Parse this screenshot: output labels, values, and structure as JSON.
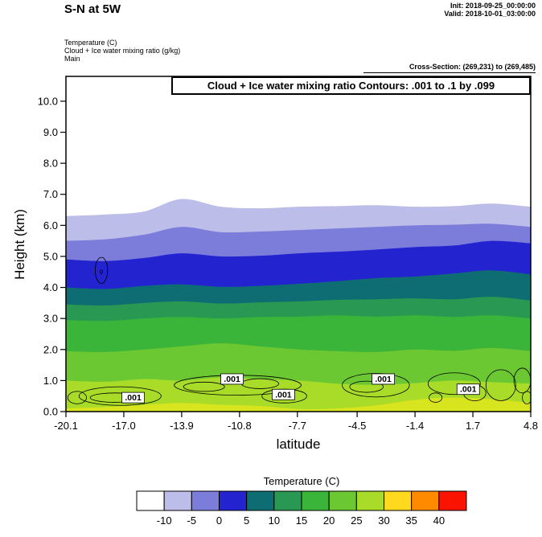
{
  "header": {
    "title": "S-N at 5W",
    "init": "Init: 2018-09-25_00:00:00",
    "valid": "Valid: 2018-10-01_03:00:00",
    "field_temperature": "Temperature  (C)",
    "field_cloud": "Cloud + Ice water mixing ratio  (g/kg)",
    "field_model": "Main",
    "cross_section": "Cross-Section: (269,231) to (269,485)"
  },
  "chart_data": {
    "type": "heatmap",
    "title": "Cloud + Ice water mixing ratio Contours: .001 to .1 by .099",
    "xlabel": "latitude",
    "ylabel": "Height (km)",
    "xlim": [
      -20.1,
      4.8
    ],
    "ylim": [
      0,
      10.8
    ],
    "x_tick_values": [
      -20.1,
      -17.0,
      -13.9,
      -10.8,
      -7.7,
      -4.5,
      -1.4,
      1.7,
      4.8
    ],
    "x_tick_labels": [
      "-20.1",
      "-17.0",
      "-13.9",
      "-10.8",
      "-7.7",
      "-4.5",
      "-1.4",
      "1.7",
      "4.8"
    ],
    "y_tick_values": [
      0,
      1,
      2,
      3,
      4,
      5,
      6,
      7,
      8,
      9,
      10
    ],
    "y_tick_labels": [
      "0.0",
      "1.0",
      "2.0",
      "3.0",
      "4.0",
      "5.0",
      "6.0",
      "7.0",
      "8.0",
      "9.0",
      "10.0"
    ],
    "temperature_field": {
      "units": "C",
      "background": {
        "range": "below -10",
        "color": "#ffffff"
      },
      "x": [
        -20.1,
        -18.0,
        -15.9,
        -13.9,
        -11.8,
        -9.7,
        -7.6,
        -5.6,
        -3.5,
        -1.4,
        0.7,
        2.7,
        4.8
      ],
      "bands": [
        {
          "range": "-10 to -5",
          "color": "#bdbde9",
          "top_km": [
            6.3,
            6.35,
            6.45,
            6.85,
            6.6,
            6.55,
            6.6,
            6.62,
            6.65,
            6.6,
            6.62,
            6.7,
            6.6
          ]
        },
        {
          "range": "-5 to 0",
          "color": "#7c7cdb",
          "top_km": [
            5.5,
            5.55,
            5.7,
            5.95,
            5.78,
            5.8,
            5.85,
            5.9,
            5.95,
            6.0,
            6.02,
            6.05,
            5.95
          ]
        },
        {
          "range": "0 to 5",
          "color": "#2323cf",
          "top_km": [
            4.9,
            4.85,
            4.95,
            5.1,
            5.0,
            5.02,
            5.1,
            5.15,
            5.22,
            5.3,
            5.35,
            5.5,
            5.42
          ]
        },
        {
          "range": "5 to 10",
          "color": "#0e6d73",
          "top_km": [
            4.0,
            3.95,
            4.05,
            4.1,
            4.02,
            4.05,
            4.12,
            4.2,
            4.3,
            4.35,
            4.45,
            4.55,
            4.42
          ]
        },
        {
          "range": "10 to 15",
          "color": "#289852",
          "top_km": [
            3.45,
            3.42,
            3.5,
            3.55,
            3.48,
            3.52,
            3.55,
            3.6,
            3.62,
            3.65,
            3.62,
            3.7,
            3.58
          ]
        },
        {
          "range": "15 to 20",
          "color": "#3ab53a",
          "top_km": [
            2.95,
            2.92,
            3.0,
            3.05,
            3.0,
            3.05,
            3.06,
            3.1,
            3.06,
            3.1,
            3.05,
            3.1,
            3.0
          ]
        },
        {
          "range": "20 to 25",
          "color": "#6cc832",
          "top_km": [
            1.95,
            1.92,
            2.0,
            2.1,
            2.2,
            2.1,
            2.0,
            1.95,
            1.92,
            2.0,
            1.96,
            2.05,
            1.95
          ]
        },
        {
          "range": "25 to 30",
          "color": "#a8dc28",
          "top_km": [
            1.0,
            0.96,
            1.05,
            1.0,
            1.1,
            1.05,
            1.0,
            0.9,
            0.86,
            0.92,
            1.0,
            0.95,
            0.9
          ]
        },
        {
          "range": "30 to 35",
          "color": "#d8e41e",
          "top_km": [
            0.1,
            0.15,
            0.22,
            0.28,
            0.22,
            0.18,
            0.08,
            0.1,
            0.2,
            0.38,
            0.45,
            0.4,
            0.28
          ]
        }
      ]
    },
    "cloud_contours": {
      "contour_value": ".001",
      "blobs": [
        {
          "lat": -19.5,
          "km": 0.45,
          "rlat": 0.5,
          "rkm": 0.2
        },
        {
          "lat": -17.2,
          "km": 0.5,
          "rlat": 2.2,
          "rkm": 0.3
        },
        {
          "lat": -17.5,
          "km": 0.45,
          "rlat": 1.3,
          "rkm": 0.15
        },
        {
          "lat": -10.9,
          "km": 0.85,
          "rlat": 3.4,
          "rkm": 0.32
        },
        {
          "lat": -12.7,
          "km": 0.8,
          "rlat": 1.1,
          "rkm": 0.15
        },
        {
          "lat": -9.7,
          "km": 0.9,
          "rlat": 1.0,
          "rkm": 0.16
        },
        {
          "lat": -8.4,
          "km": 0.5,
          "rlat": 1.2,
          "rkm": 0.22
        },
        {
          "lat": -3.5,
          "km": 0.85,
          "rlat": 1.8,
          "rkm": 0.38
        },
        {
          "lat": -4.0,
          "km": 0.8,
          "rlat": 0.9,
          "rkm": 0.18
        },
        {
          "lat": 0.7,
          "km": 0.9,
          "rlat": 1.4,
          "rkm": 0.35
        },
        {
          "lat": 1.8,
          "km": 0.6,
          "rlat": 0.6,
          "rkm": 0.25
        },
        {
          "lat": 3.2,
          "km": 0.85,
          "rlat": 0.8,
          "rkm": 0.5
        },
        {
          "lat": 4.35,
          "km": 1.0,
          "rlat": 0.45,
          "rkm": 0.4
        },
        {
          "lat": 4.6,
          "km": 0.45,
          "rlat": 0.25,
          "rkm": 0.2
        },
        {
          "lat": -0.3,
          "km": 0.45,
          "rlat": 0.35,
          "rkm": 0.15
        },
        {
          "lat": -18.2,
          "km": 4.55,
          "rlat": 0.33,
          "rkm": 0.42
        },
        {
          "lat": -18.2,
          "km": 4.5,
          "rlat": 0.06,
          "rkm": 0.06
        }
      ],
      "labels": [
        {
          "lat": -16.5,
          "km": 0.45,
          "text": ".001"
        },
        {
          "lat": -11.2,
          "km": 1.05,
          "text": ".001"
        },
        {
          "lat": -8.45,
          "km": 0.55,
          "text": ".001"
        },
        {
          "lat": -3.1,
          "km": 1.05,
          "text": ".001"
        },
        {
          "lat": 1.45,
          "km": 0.72,
          "text": ".001"
        }
      ]
    },
    "colorbar": {
      "title": "Temperature  (C)",
      "cell_colors": [
        "#ffffff",
        "#bdbde9",
        "#7c7cdb",
        "#2323cf",
        "#0e6d73",
        "#289852",
        "#3ab53a",
        "#6cc832",
        "#a8dc28",
        "#ffd91e",
        "#ff8a00",
        "#fa1400"
      ],
      "tick_labels": [
        "-10",
        "-5",
        "0",
        "5",
        "10",
        "15",
        "20",
        "25",
        "30",
        "35",
        "40"
      ]
    }
  }
}
